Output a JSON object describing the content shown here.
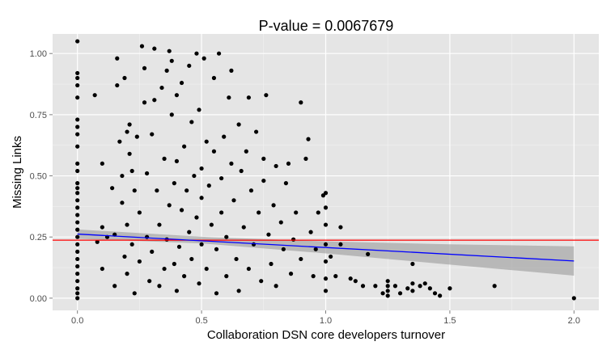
{
  "chart_data": {
    "type": "scatter",
    "title": "P-value = 0.0067679",
    "xlabel": "Collaboration DSN core developers turnover",
    "ylabel": "Missing Links",
    "xlim": [
      -0.1,
      2.1
    ],
    "ylim": [
      -0.05,
      1.08
    ],
    "x_ticks": [
      0.0,
      0.5,
      1.0,
      1.5,
      2.0
    ],
    "x_tick_labels": [
      "0.0",
      "0.5",
      "1.0",
      "1.5",
      "2.0"
    ],
    "y_ticks": [
      0.0,
      0.25,
      0.5,
      0.75,
      1.0
    ],
    "y_tick_labels": [
      "0.00",
      "0.25",
      "0.50",
      "0.75",
      "1.00"
    ],
    "grid": true,
    "legend": "none",
    "points": [
      [
        0,
        1.05
      ],
      [
        0,
        0.92
      ],
      [
        0,
        0.9
      ],
      [
        0,
        0.87
      ],
      [
        0,
        0.82
      ],
      [
        0,
        0.73
      ],
      [
        0,
        0.7
      ],
      [
        0,
        0.67
      ],
      [
        0,
        0.62
      ],
      [
        0,
        0.55
      ],
      [
        0,
        0.52
      ],
      [
        0,
        0.47
      ],
      [
        0,
        0.45
      ],
      [
        0,
        0.43
      ],
      [
        0,
        0.4
      ],
      [
        0,
        0.37
      ],
      [
        0,
        0.34
      ],
      [
        0,
        0.31
      ],
      [
        0,
        0.28
      ],
      [
        0,
        0.25
      ],
      [
        0,
        0.22
      ],
      [
        0,
        0.19
      ],
      [
        0,
        0.16
      ],
      [
        0,
        0.13
      ],
      [
        0,
        0.1
      ],
      [
        0,
        0.07
      ],
      [
        0,
        0.04
      ],
      [
        0,
        0.02
      ],
      [
        0,
        0.0
      ],
      [
        0.07,
        0.83
      ],
      [
        0.08,
        0.23
      ],
      [
        0.1,
        0.55
      ],
      [
        0.1,
        0.29
      ],
      [
        0.1,
        0.12
      ],
      [
        0.12,
        0.25
      ],
      [
        0.14,
        0.45
      ],
      [
        0.15,
        0.26
      ],
      [
        0.15,
        0.05
      ],
      [
        0.16,
        0.98
      ],
      [
        0.16,
        0.87
      ],
      [
        0.17,
        0.64
      ],
      [
        0.18,
        0.5
      ],
      [
        0.18,
        0.39
      ],
      [
        0.19,
        0.9
      ],
      [
        0.19,
        0.17
      ],
      [
        0.2,
        0.68
      ],
      [
        0.2,
        0.3
      ],
      [
        0.2,
        0.1
      ],
      [
        0.21,
        0.71
      ],
      [
        0.21,
        0.59
      ],
      [
        0.22,
        0.52
      ],
      [
        0.22,
        0.22
      ],
      [
        0.23,
        0.44
      ],
      [
        0.23,
        0.02
      ],
      [
        0.24,
        0.66
      ],
      [
        0.25,
        0.15
      ],
      [
        0.25,
        0.35
      ],
      [
        0.26,
        1.03
      ],
      [
        0.27,
        0.8
      ],
      [
        0.27,
        0.94
      ],
      [
        0.28,
        0.51
      ],
      [
        0.28,
        0.25
      ],
      [
        0.29,
        0.07
      ],
      [
        0.3,
        0.67
      ],
      [
        0.3,
        0.19
      ],
      [
        0.31,
        0.81
      ],
      [
        0.31,
        1.02
      ],
      [
        0.32,
        0.44
      ],
      [
        0.33,
        0.3
      ],
      [
        0.33,
        0.05
      ],
      [
        0.34,
        0.86
      ],
      [
        0.35,
        0.57
      ],
      [
        0.35,
        0.12
      ],
      [
        0.36,
        0.93
      ],
      [
        0.36,
        0.24
      ],
      [
        0.37,
        1.01
      ],
      [
        0.37,
        0.38
      ],
      [
        0.38,
        0.97
      ],
      [
        0.38,
        0.75
      ],
      [
        0.39,
        0.47
      ],
      [
        0.39,
        0.14
      ],
      [
        0.4,
        0.83
      ],
      [
        0.4,
        0.56
      ],
      [
        0.4,
        0.03
      ],
      [
        0.41,
        0.21
      ],
      [
        0.42,
        0.88
      ],
      [
        0.42,
        0.36
      ],
      [
        0.43,
        0.62
      ],
      [
        0.43,
        0.09
      ],
      [
        0.44,
        0.44
      ],
      [
        0.45,
        0.95
      ],
      [
        0.45,
        0.27
      ],
      [
        0.46,
        0.72
      ],
      [
        0.46,
        0.16
      ],
      [
        0.47,
        0.5
      ],
      [
        0.48,
        1.0
      ],
      [
        0.48,
        0.33
      ],
      [
        0.49,
        0.77
      ],
      [
        0.49,
        0.06
      ],
      [
        0.5,
        0.53
      ],
      [
        0.5,
        0.41
      ],
      [
        0.5,
        0.22
      ],
      [
        0.51,
        0.98
      ],
      [
        0.52,
        0.64
      ],
      [
        0.52,
        0.12
      ],
      [
        0.53,
        0.46
      ],
      [
        0.54,
        0.3
      ],
      [
        0.55,
        0.9
      ],
      [
        0.55,
        0.6
      ],
      [
        0.56,
        0.2
      ],
      [
        0.56,
        0.02
      ],
      [
        0.57,
        1.0
      ],
      [
        0.58,
        0.49
      ],
      [
        0.58,
        0.35
      ],
      [
        0.59,
        0.66
      ],
      [
        0.6,
        0.25
      ],
      [
        0.6,
        0.09
      ],
      [
        0.61,
        0.82
      ],
      [
        0.62,
        0.55
      ],
      [
        0.62,
        0.93
      ],
      [
        0.63,
        0.4
      ],
      [
        0.64,
        0.16
      ],
      [
        0.65,
        0.71
      ],
      [
        0.65,
        0.03
      ],
      [
        0.66,
        0.52
      ],
      [
        0.67,
        0.29
      ],
      [
        0.68,
        0.6
      ],
      [
        0.69,
        0.82
      ],
      [
        0.69,
        0.12
      ],
      [
        0.7,
        0.44
      ],
      [
        0.71,
        0.22
      ],
      [
        0.72,
        0.68
      ],
      [
        0.73,
        0.35
      ],
      [
        0.74,
        0.07
      ],
      [
        0.75,
        0.48
      ],
      [
        0.75,
        0.57
      ],
      [
        0.76,
        0.83
      ],
      [
        0.77,
        0.26
      ],
      [
        0.78,
        0.14
      ],
      [
        0.79,
        0.38
      ],
      [
        0.8,
        0.54
      ],
      [
        0.8,
        0.05
      ],
      [
        0.82,
        0.31
      ],
      [
        0.83,
        0.2
      ],
      [
        0.84,
        0.47
      ],
      [
        0.85,
        0.55
      ],
      [
        0.86,
        0.1
      ],
      [
        0.87,
        0.24
      ],
      [
        0.88,
        0.35
      ],
      [
        0.9,
        0.16
      ],
      [
        0.9,
        0.8
      ],
      [
        0.92,
        0.57
      ],
      [
        0.93,
        0.65
      ],
      [
        0.94,
        0.27
      ],
      [
        0.95,
        0.09
      ],
      [
        0.96,
        0.2
      ],
      [
        0.97,
        0.35
      ],
      [
        0.99,
        0.42
      ],
      [
        1.0,
        0.43
      ],
      [
        1.0,
        0.37
      ],
      [
        1.0,
        0.3
      ],
      [
        1.0,
        0.22
      ],
      [
        1.0,
        0.15
      ],
      [
        1.0,
        0.08
      ],
      [
        1.0,
        0.03
      ],
      [
        1.02,
        0.17
      ],
      [
        1.04,
        0.09
      ],
      [
        1.06,
        0.29
      ],
      [
        1.06,
        0.22
      ],
      [
        1.1,
        0.08
      ],
      [
        1.12,
        0.07
      ],
      [
        1.15,
        0.05
      ],
      [
        1.17,
        0.18
      ],
      [
        1.2,
        0.05
      ],
      [
        1.23,
        0.02
      ],
      [
        1.25,
        0.07
      ],
      [
        1.25,
        0.05
      ],
      [
        1.25,
        0.03
      ],
      [
        1.25,
        0.01
      ],
      [
        1.28,
        0.05
      ],
      [
        1.3,
        0.02
      ],
      [
        1.33,
        0.04
      ],
      [
        1.35,
        0.14
      ],
      [
        1.35,
        0.06
      ],
      [
        1.35,
        0.03
      ],
      [
        1.38,
        0.05
      ],
      [
        1.4,
        0.06
      ],
      [
        1.42,
        0.04
      ],
      [
        1.44,
        0.02
      ],
      [
        1.46,
        0.01
      ],
      [
        1.5,
        0.04
      ],
      [
        1.68,
        0.05
      ],
      [
        2.0,
        0.0
      ]
    ],
    "regression_line": {
      "color": "#0000ff",
      "x": [
        0.0,
        2.0
      ],
      "y": [
        0.262,
        0.152
      ]
    },
    "confidence_band": {
      "color": "#999999",
      "x": [
        0.0,
        0.5,
        1.0,
        1.5,
        2.0
      ],
      "lower": [
        0.243,
        0.224,
        0.183,
        0.137,
        0.092
      ],
      "upper": [
        0.281,
        0.251,
        0.232,
        0.22,
        0.212
      ]
    },
    "reference_line": {
      "color": "#ff0000",
      "y": 0.237
    }
  }
}
